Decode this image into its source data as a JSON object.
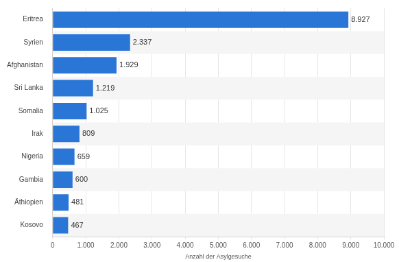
{
  "chart_data": {
    "type": "bar",
    "orientation": "horizontal",
    "x_label": "Anzahl der Asylgesuche",
    "categories": [
      "Eritrea",
      "Syrien",
      "Afghanistan",
      "Sri Lanka",
      "Somalia",
      "Irak",
      "Nigeria",
      "Gambia",
      "Äthiopien",
      "Kosovo"
    ],
    "values": [
      8927,
      2337,
      1929,
      1219,
      1025,
      809,
      659,
      600,
      481,
      467
    ],
    "value_labels": [
      "8.927",
      "2.337",
      "1.929",
      "1.219",
      "1.025",
      "809",
      "659",
      "600",
      "481",
      "467"
    ],
    "data_labels": true,
    "color": "#2a76d6",
    "xlim": [
      0,
      10000
    ],
    "xticks": [
      0,
      {
        "value": 1000,
        "label": "1.000"
      },
      {
        "value": 2000,
        "label": "2.000"
      },
      {
        "value": 3000,
        "label": "3.000"
      },
      {
        "value": 4000,
        "label": "4.000"
      },
      {
        "value": 5000,
        "label": "5.000"
      },
      {
        "value": 6000,
        "label": "6.000"
      },
      {
        "value": 7000,
        "label": "7.000"
      },
      {
        "value": 8000,
        "label": "8.000"
      },
      {
        "value": 9000,
        "label": "9.000"
      },
      {
        "value": 10000,
        "label": "10.000"
      }
    ],
    "grid": true
  }
}
